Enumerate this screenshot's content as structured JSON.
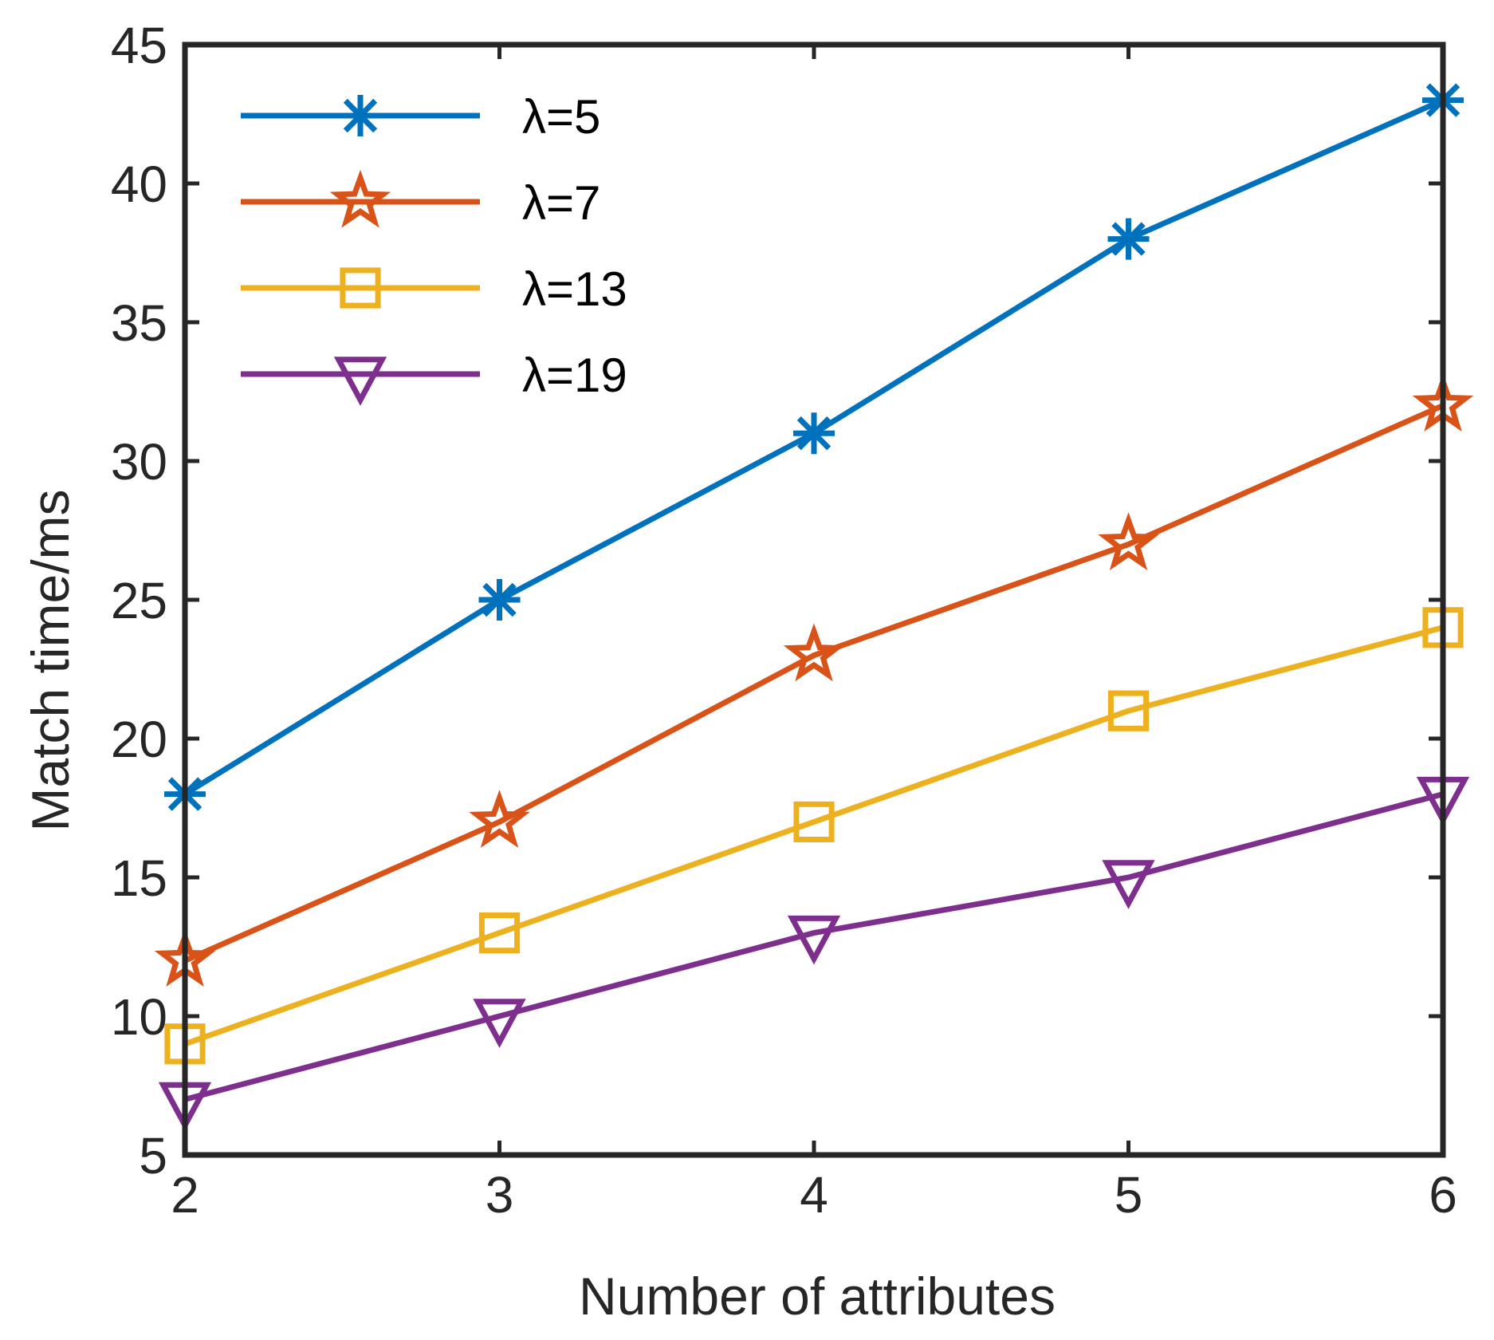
{
  "chart_data": {
    "type": "line",
    "title": "",
    "xlabel": "Number of attributes",
    "ylabel": "Match time/ms",
    "x": [
      2,
      3,
      4,
      5,
      6
    ],
    "xlim": [
      2,
      6
    ],
    "ylim": [
      5,
      45
    ],
    "xticks": [
      2,
      3,
      4,
      5,
      6
    ],
    "yticks": [
      5,
      10,
      15,
      20,
      25,
      30,
      35,
      40,
      45
    ],
    "grid": false,
    "legend_position": "top-left",
    "series": [
      {
        "name": "λ=5",
        "color": "#0072BD",
        "marker": "asterisk",
        "values": [
          18,
          25,
          31,
          38,
          43
        ]
      },
      {
        "name": "λ=7",
        "color": "#D95319",
        "marker": "star",
        "values": [
          12,
          17,
          23,
          27,
          32
        ]
      },
      {
        "name": "λ=13",
        "color": "#EDB120",
        "marker": "square",
        "values": [
          9,
          13,
          17,
          21,
          24
        ]
      },
      {
        "name": "λ=19",
        "color": "#7E2F8E",
        "marker": "triangle-down",
        "values": [
          7,
          10,
          13,
          15,
          18
        ]
      }
    ]
  }
}
